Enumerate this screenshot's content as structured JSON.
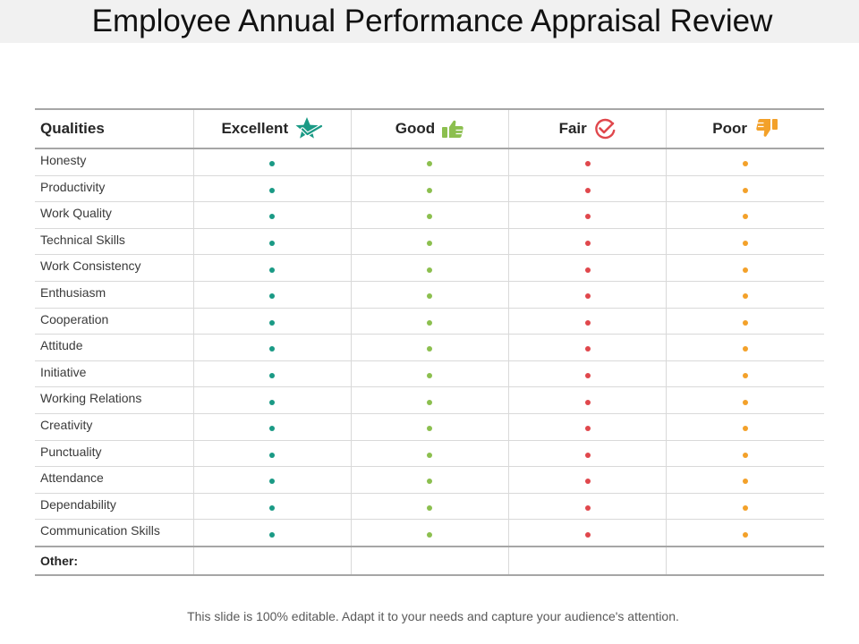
{
  "title": "Employee Annual Performance Appraisal Review",
  "table": {
    "headers": {
      "qualities": "Qualities",
      "excellent": "Excellent",
      "good": "Good",
      "fair": "Fair",
      "poor": "Poor"
    },
    "header_icons": {
      "excellent": "star-check-icon",
      "good": "thumbs-up-icon",
      "fair": "circle-check-icon",
      "poor": "thumbs-down-icon"
    },
    "rating_colors": {
      "excellent": "#1a9a85",
      "good": "#8cbf4f",
      "fair": "#e0474c",
      "poor": "#f3a12a"
    },
    "qualities": [
      "Honesty",
      "Productivity",
      "Work Quality",
      "Technical Skills",
      "Work Consistency",
      "Enthusiasm",
      "Cooperation",
      "Attitude",
      "Initiative",
      "Working Relations",
      "Creativity",
      "Punctuality",
      "Attendance",
      "Dependability",
      "Communication Skills"
    ],
    "other_label": "Other:"
  },
  "footer": "This slide is 100% editable. Adapt it to your needs and capture your audience's attention."
}
